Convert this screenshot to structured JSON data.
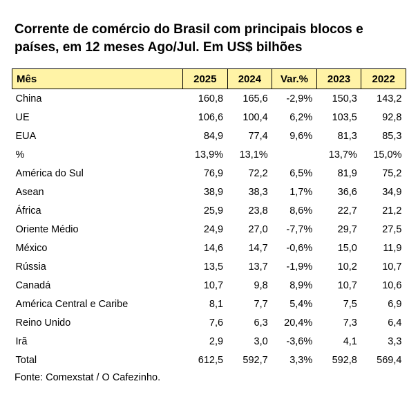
{
  "title": "Corrente de comércio do Brasil com principais blocos e países, em 12 meses Ago/Jul. Em US$ bilhões",
  "table": {
    "headers": [
      "Mês",
      "2025",
      "2024",
      "Var.%",
      "2023",
      "2022"
    ],
    "rows": [
      [
        "China",
        "160,8",
        "165,6",
        "-2,9%",
        "150,3",
        "143,2"
      ],
      [
        "UE",
        "106,6",
        "100,4",
        "6,2%",
        "103,5",
        "92,8"
      ],
      [
        "EUA",
        "84,9",
        "77,4",
        "9,6%",
        "81,3",
        "85,3"
      ],
      [
        "%",
        "13,9%",
        "13,1%",
        "",
        "13,7%",
        "15,0%"
      ],
      [
        "América do Sul",
        "76,9",
        "72,2",
        "6,5%",
        "81,9",
        "75,2"
      ],
      [
        "Asean",
        "38,9",
        "38,3",
        "1,7%",
        "36,6",
        "34,9"
      ],
      [
        "África",
        "25,9",
        "23,8",
        "8,6%",
        "22,7",
        "21,2"
      ],
      [
        "Oriente Médio",
        "24,9",
        "27,0",
        "-7,7%",
        "29,7",
        "27,5"
      ],
      [
        "México",
        "14,6",
        "14,7",
        "-0,6%",
        "15,0",
        "11,9"
      ],
      [
        "Rússia",
        "13,5",
        "13,7",
        "-1,9%",
        "10,2",
        "10,7"
      ],
      [
        "Canadá",
        "10,7",
        "9,8",
        "8,9%",
        "10,7",
        "10,6"
      ],
      [
        "América Central e Caribe",
        "8,1",
        "7,7",
        "5,4%",
        "7,5",
        "6,9"
      ],
      [
        "Reino Unido",
        "7,6",
        "6,3",
        "20,4%",
        "7,3",
        "6,4"
      ],
      [
        "Irã",
        "2,9",
        "3,0",
        "-3,6%",
        "4,1",
        "3,3"
      ],
      [
        "Total",
        "612,5",
        "592,7",
        "3,3%",
        "592,8",
        "569,4"
      ]
    ]
  },
  "source": "Fonte: Comexstat / O Cafezinho.",
  "colors": {
    "header_background": "#fff3a6",
    "text": "#000000"
  }
}
